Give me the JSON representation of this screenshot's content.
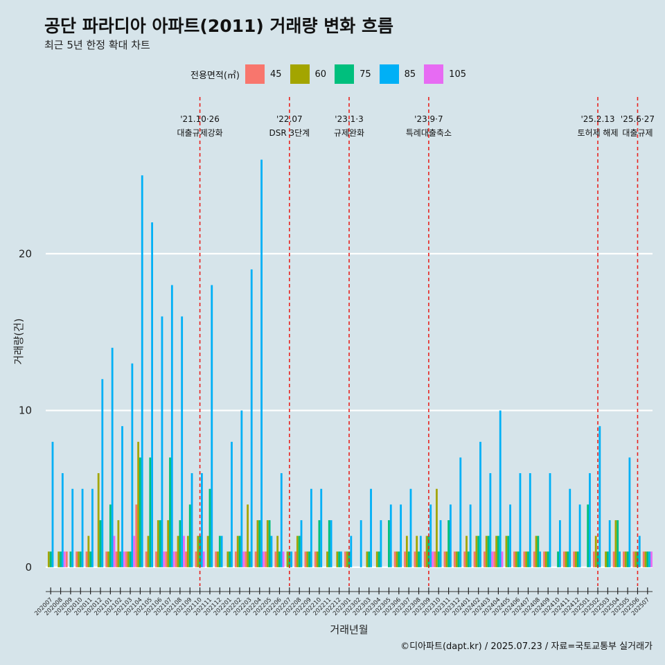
{
  "chart_data": {
    "type": "bar",
    "title": "공단 파라디아 아파트(2011) 거래량 변화 흐름",
    "subtitle": "최근 5년 한정 확대 차트",
    "xlabel": "거래년월",
    "ylabel": "거래량(건)",
    "ylim": [
      -1.2,
      30
    ],
    "yticks": [
      0,
      10,
      20
    ],
    "grid": true,
    "legend_title": "전용면적(㎡)",
    "legend_position": "top",
    "categories": [
      "202007",
      "202008",
      "202009",
      "202010",
      "202011",
      "202012",
      "202101",
      "202102",
      "202103",
      "202104",
      "202105",
      "202106",
      "202107",
      "202108",
      "202109",
      "202110",
      "202111",
      "202112",
      "202201",
      "202202",
      "202203",
      "202204",
      "202205",
      "202206",
      "202207",
      "202208",
      "202209",
      "202210",
      "202211",
      "202212",
      "202301",
      "202302",
      "202303",
      "202304",
      "202305",
      "202306",
      "202307",
      "202308",
      "202309",
      "202310",
      "202311",
      "202312",
      "202401",
      "202402",
      "202403",
      "202404",
      "202405",
      "202406",
      "202407",
      "202408",
      "202409",
      "202410",
      "202411",
      "202412",
      "202501",
      "202502",
      "202503",
      "202504",
      "202505",
      "202506",
      "202507"
    ],
    "series": [
      {
        "name": "45",
        "color": "#f8766d",
        "values": [
          0,
          0,
          1,
          1,
          1,
          0,
          1,
          1,
          1,
          4,
          1,
          1,
          1,
          1,
          1,
          1,
          0,
          1,
          0,
          1,
          1,
          1,
          1,
          1,
          0,
          1,
          1,
          1,
          0,
          0,
          1,
          0,
          0,
          0,
          0,
          1,
          1,
          1,
          1,
          1,
          1,
          1,
          1,
          1,
          1,
          1,
          0,
          1,
          1,
          1,
          1,
          0,
          1,
          1,
          0,
          1,
          0,
          1,
          1,
          1,
          1
        ]
      },
      {
        "name": "60",
        "color": "#a3a500",
        "values": [
          1,
          1,
          0,
          1,
          2,
          6,
          1,
          3,
          1,
          8,
          2,
          3,
          3,
          2,
          2,
          2,
          2,
          1,
          1,
          2,
          4,
          3,
          3,
          2,
          1,
          2,
          1,
          1,
          1,
          1,
          1,
          0,
          1,
          1,
          0,
          1,
          2,
          2,
          2,
          5,
          1,
          1,
          2,
          2,
          2,
          2,
          2,
          1,
          1,
          2,
          1,
          0,
          1,
          1,
          0,
          2,
          1,
          3,
          1,
          1,
          1
        ]
      },
      {
        "name": "75",
        "color": "#00bf7d",
        "values": [
          1,
          1,
          1,
          1,
          1,
          3,
          4,
          1,
          1,
          7,
          7,
          3,
          7,
          3,
          4,
          2,
          5,
          2,
          1,
          2,
          1,
          3,
          3,
          1,
          1,
          2,
          1,
          3,
          3,
          1,
          1,
          0,
          1,
          1,
          3,
          1,
          1,
          1,
          2,
          1,
          3,
          1,
          1,
          2,
          2,
          2,
          2,
          1,
          1,
          2,
          1,
          1,
          1,
          1,
          4,
          1,
          1,
          3,
          1,
          1,
          1
        ]
      },
      {
        "name": "85",
        "color": "#00b0f6",
        "values": [
          8,
          6,
          5,
          5,
          5,
          12,
          14,
          9,
          13,
          25,
          22,
          16,
          18,
          16,
          6,
          6,
          18,
          2,
          8,
          10,
          19,
          26,
          2,
          6,
          1,
          3,
          5,
          5,
          3,
          1,
          2,
          3,
          5,
          3,
          4,
          4,
          5,
          2,
          4,
          3,
          4,
          7,
          4,
          8,
          6,
          10,
          4,
          6,
          6,
          1,
          6,
          3,
          5,
          4,
          6,
          9,
          3,
          1,
          7,
          2,
          1
        ]
      },
      {
        "name": "105",
        "color": "#e76bf3",
        "values": [
          0,
          1,
          0,
          0,
          0,
          0,
          2,
          1,
          2,
          0,
          0,
          1,
          1,
          2,
          0,
          1,
          0,
          0,
          0,
          1,
          0,
          1,
          0,
          1,
          0,
          0,
          0,
          0,
          0,
          0,
          0,
          0,
          0,
          0,
          0,
          0,
          0,
          0,
          1,
          0,
          0,
          0,
          0,
          0,
          1,
          1,
          0,
          0,
          0,
          0,
          0,
          0,
          0,
          0,
          0,
          0,
          0,
          0,
          0,
          0,
          1
        ]
      }
    ],
    "events": [
      {
        "date": "202110",
        "line1": "'21.10·26",
        "line2": "대출규제강화"
      },
      {
        "date": "202207",
        "line1": "'22.07",
        "line2": "DSR 3단계"
      },
      {
        "date": "202301",
        "line1": "'23.1·3",
        "line2": "규제완화"
      },
      {
        "date": "202309",
        "line1": "'23.9·7",
        "line2": "특례대출축소"
      },
      {
        "date": "202502",
        "line1": "'25.2.13",
        "line2": "토허제 해제"
      },
      {
        "date": "202506",
        "line1": "'25.6·27",
        "line2": "대출규제"
      }
    ],
    "event_line_color": "#e8231f"
  },
  "caption": "©디아파트(dapt.kr) / 2025.07.23 / 자료=국토교통부 실거래가"
}
